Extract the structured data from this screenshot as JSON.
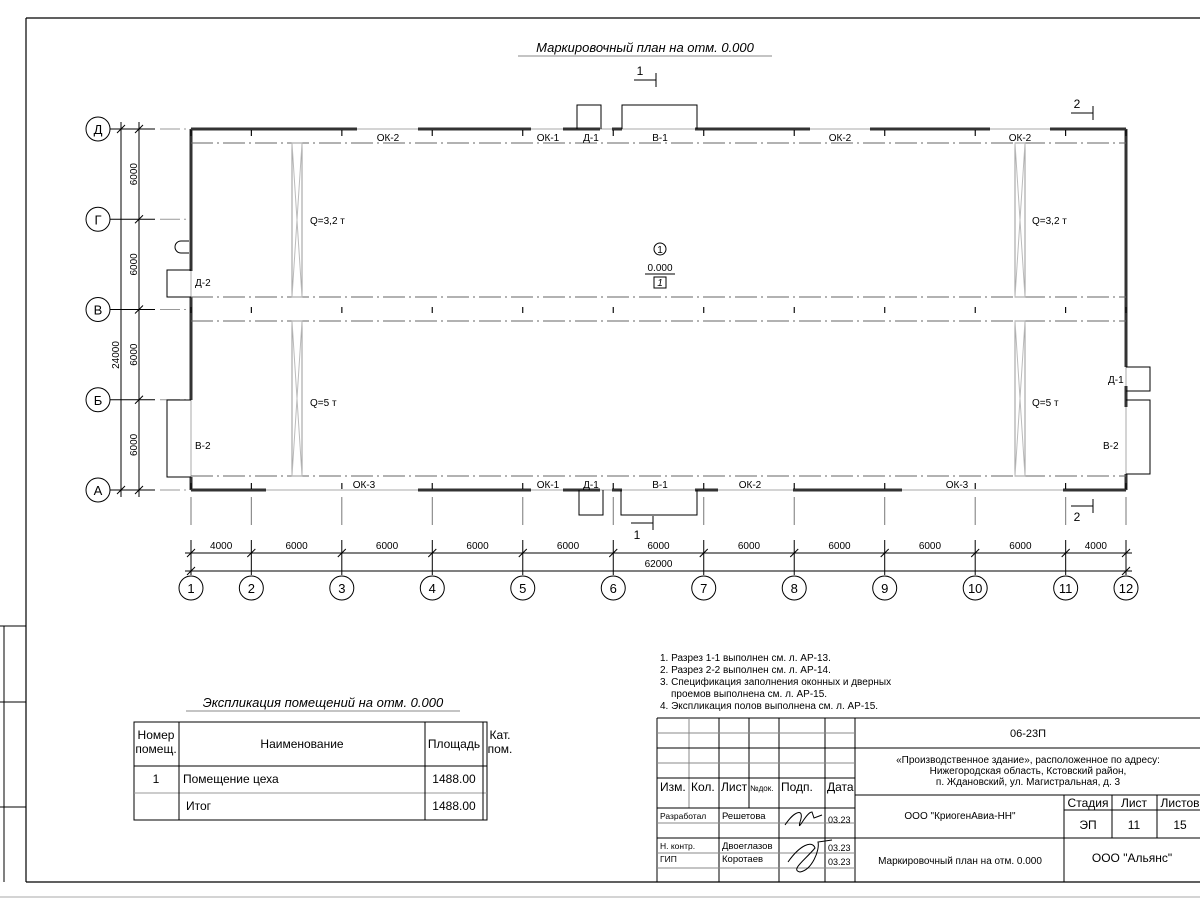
{
  "plan": {
    "title": "Маркировочный план на отм. 0.000",
    "section_marks": {
      "s1": "1",
      "s2": "2"
    },
    "column_axes": [
      {
        "label": "1",
        "pos": 0
      },
      {
        "label": "2",
        "pos": 4000
      },
      {
        "label": "3",
        "pos": 10000
      },
      {
        "label": "4",
        "pos": 16000
      },
      {
        "label": "5",
        "pos": 22000
      },
      {
        "label": "6",
        "pos": 28000
      },
      {
        "label": "7",
        "pos": 34000
      },
      {
        "label": "8",
        "pos": 40000
      },
      {
        "label": "9",
        "pos": 46000
      },
      {
        "label": "10",
        "pos": 52000
      },
      {
        "label": "11",
        "pos": 58000
      },
      {
        "label": "12",
        "pos": 62000
      }
    ],
    "row_axes": [
      {
        "label": "Д",
        "pos": 24000
      },
      {
        "label": "Г",
        "pos": 18000
      },
      {
        "label": "В",
        "pos": 12000
      },
      {
        "label": "Б",
        "pos": 6000
      },
      {
        "label": "А",
        "pos": 0
      }
    ],
    "horizontal_dims": [
      "4000",
      "6000",
      "6000",
      "6000",
      "6000",
      "6000",
      "6000",
      "6000",
      "6000",
      "6000",
      "4000"
    ],
    "horizontal_total": "62000",
    "vertical_dims": [
      "6000",
      "6000",
      "6000",
      "6000"
    ],
    "vertical_total": "24000",
    "top_openings": [
      "ОК-2",
      "ОК-1",
      "Д-1",
      "В-1",
      "ОК-2",
      "ОК-2"
    ],
    "bottom_openings": [
      "ОК-3",
      "ОК-1",
      "Д-1",
      "В-1",
      "ОК-2",
      "ОК-3"
    ],
    "left_openings": [
      "Д-2",
      "В-2"
    ],
    "right_openings": [
      "Д-1",
      "В-2"
    ],
    "cranes": {
      "upper": "Q=3,2 т",
      "lower": "Q=5 т"
    },
    "room": {
      "number": "1",
      "level": "0.000",
      "category": "1"
    }
  },
  "notes": [
    "1. Разрез 1-1 выполнен см. л. АР-13.",
    "2. Разрез 2-2 выполнен см. л. АР-14.",
    "3. Спецификация заполнения оконных и дверных",
    "проемов выполнена см. л. АР-15.",
    "4. Экспликация полов выполнена см. л. АР-15."
  ],
  "explication": {
    "title": "Экспликация помещений на отм. 0.000",
    "headers": [
      "Номер",
      "помещ.",
      "Наименование",
      "Площадь",
      "Кат.",
      "пом."
    ],
    "rows": [
      {
        "num": "1",
        "name": "Помещение цеха",
        "area": "1488.00",
        "cat": ""
      },
      {
        "num": "",
        "name": "Итог",
        "area": "1488.00",
        "cat": ""
      }
    ]
  },
  "title_block": {
    "headers": [
      "Изм.",
      "Кол.",
      "Лист",
      "№док.",
      "Подп.",
      "Дата"
    ],
    "staff": [
      {
        "role": "Разработал",
        "name": "Решетова",
        "date": "03.23"
      },
      {
        "role": "Н. контр.",
        "name": "Двоеглазов",
        "date": "03.23"
      },
      {
        "role": "ГИП",
        "name": "Коротаев",
        "date": "03.23"
      }
    ],
    "code": "06-23П",
    "address": [
      "«Производственное здание», расположенное по адресу:",
      "Нижегородская область, Кстовский район,",
      "п. Ждановский, ул. Магистральная, д. 3"
    ],
    "customer": "ООО \"КриогенАвиа-НН\"",
    "stage_label": "Стадия",
    "sheet_label": "Лист",
    "sheets_label": "Листов",
    "stage": "ЭП",
    "sheet": "11",
    "sheets": "15",
    "drawing_name": "Маркировочный план на отм. 0.000",
    "company": "ООО \"Альянс\""
  }
}
